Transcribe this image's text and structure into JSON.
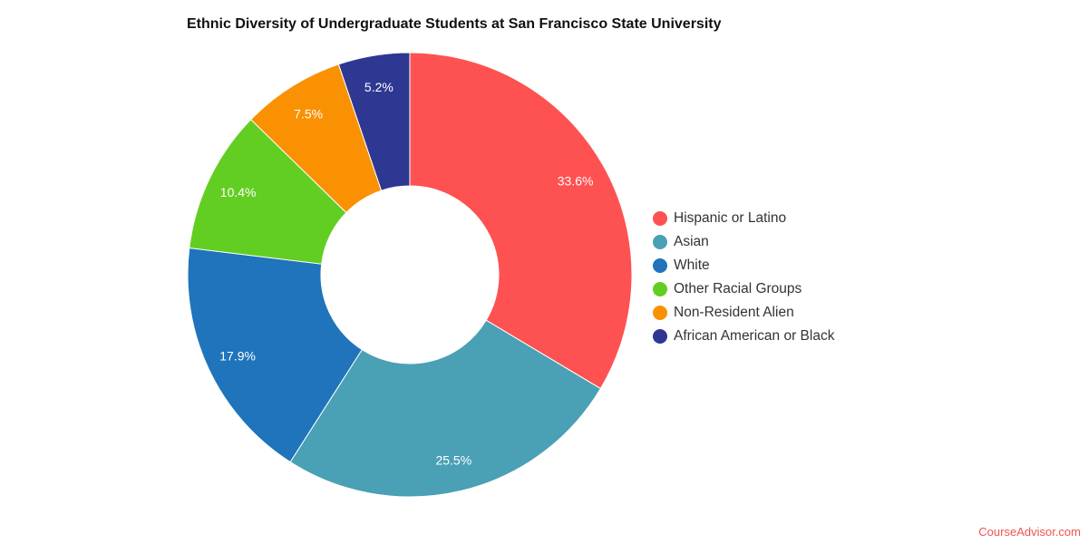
{
  "chart_data": {
    "type": "pie",
    "donut": true,
    "title": "Ethnic Diversity of Undergraduate Students at San Francisco State University",
    "slices": [
      {
        "label": "Hispanic or Latino",
        "value": 33.6,
        "display": "33.6%",
        "color": "#fe5151"
      },
      {
        "label": "Asian",
        "value": 25.5,
        "display": "25.5%",
        "color": "#4aa0b4"
      },
      {
        "label": "White",
        "value": 17.9,
        "display": "17.9%",
        "color": "#1f74bb"
      },
      {
        "label": "Other Racial Groups",
        "value": 10.4,
        "display": "10.4%",
        "color": "#62ce22"
      },
      {
        "label": "Non-Resident Alien",
        "value": 7.5,
        "display": "7.5%",
        "color": "#fa9103"
      },
      {
        "label": "African American or Black",
        "value": 5.2,
        "display": "5.2%",
        "color": "#2e3892"
      }
    ],
    "legend_placement": "right"
  },
  "credit": "CourseAdvisor.com"
}
